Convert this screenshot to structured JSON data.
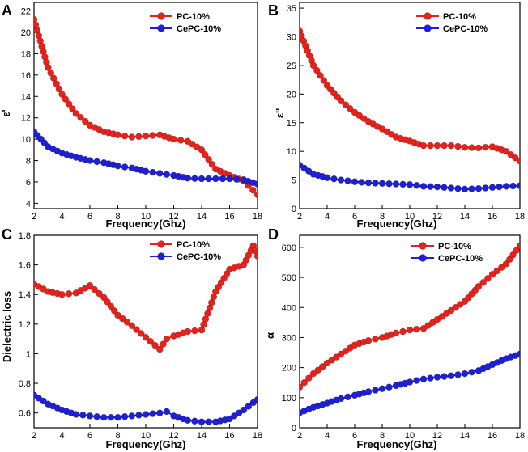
{
  "figure": {
    "series_colors": {
      "PC-10%": "#e8211b",
      "CePC-10%": "#1f20d6"
    }
  },
  "chart_data": [
    {
      "panel": "A",
      "type": "line",
      "xlabel": "Frequency(Ghz)",
      "ylabel": "ε'",
      "xlim": [
        2,
        18
      ],
      "ylim": [
        3.5,
        22.8
      ],
      "xticks": [
        2,
        4,
        6,
        8,
        10,
        12,
        14,
        16,
        18
      ],
      "yticks": [
        4,
        6,
        8,
        10,
        12,
        14,
        16,
        18,
        20,
        22
      ],
      "legend": [
        "PC-10%",
        "CePC-10%"
      ],
      "x": [
        2,
        3,
        4,
        5,
        6,
        7,
        8,
        9,
        10,
        11,
        12,
        13,
        14,
        15,
        16,
        17,
        18
      ],
      "series": [
        {
          "name": "PC-10%",
          "values": [
            21.2,
            16.7,
            14.2,
            12.4,
            11.3,
            10.7,
            10.4,
            10.2,
            10.3,
            10.4,
            10.0,
            9.8,
            9.0,
            7.2,
            6.6,
            6.1,
            4.8
          ]
        },
        {
          "name": "CePC-10%",
          "values": [
            10.7,
            9.3,
            8.7,
            8.3,
            8.0,
            7.8,
            7.5,
            7.3,
            7.0,
            6.8,
            6.6,
            6.35,
            6.3,
            6.3,
            6.3,
            6.2,
            5.8
          ]
        }
      ]
    },
    {
      "panel": "B",
      "type": "line",
      "xlabel": "Frequency(Ghz)",
      "ylabel": "ε''",
      "xlim": [
        2,
        18
      ],
      "ylim": [
        0,
        36
      ],
      "xticks": [
        2,
        4,
        6,
        8,
        10,
        12,
        14,
        16,
        18
      ],
      "yticks": [
        0,
        5,
        10,
        15,
        20,
        25,
        30,
        35
      ],
      "legend": [
        "PC-10%",
        "CePC-10%"
      ],
      "x": [
        2,
        3,
        4,
        5,
        6,
        7,
        8,
        9,
        10,
        11,
        12,
        13,
        14,
        15,
        16,
        17,
        18
      ],
      "series": [
        {
          "name": "PC-10%",
          "values": [
            31.0,
            25.0,
            21.5,
            18.8,
            16.8,
            15.2,
            13.9,
            12.5,
            11.8,
            11.0,
            11.0,
            11.0,
            10.7,
            10.6,
            10.8,
            10.0,
            8.3
          ]
        },
        {
          "name": "CePC-10%",
          "values": [
            7.6,
            6.0,
            5.4,
            5.0,
            4.7,
            4.5,
            4.4,
            4.3,
            4.2,
            3.9,
            3.8,
            3.6,
            3.4,
            3.5,
            3.7,
            3.9,
            4.0
          ]
        }
      ]
    },
    {
      "panel": "C",
      "type": "line",
      "xlabel": "Frequency(Ghz)",
      "ylabel": "Dielectric loss",
      "xlim": [
        2,
        18
      ],
      "ylim": [
        0.5,
        1.8
      ],
      "xticks": [
        2,
        4,
        6,
        8,
        10,
        12,
        14,
        16,
        18
      ],
      "yticks": [
        0.6,
        0.8,
        1.0,
        1.2,
        1.4,
        1.6,
        1.8
      ],
      "legend": [
        "PC-10%",
        "CePC-10%"
      ],
      "x": [
        2,
        3,
        4,
        5,
        6,
        7,
        8,
        9,
        10,
        11,
        11.5,
        12,
        13,
        14,
        15,
        16,
        17,
        17.7,
        18
      ],
      "series": [
        {
          "name": "PC-10%",
          "values": [
            1.47,
            1.42,
            1.4,
            1.41,
            1.46,
            1.38,
            1.26,
            1.19,
            1.11,
            1.03,
            1.1,
            1.12,
            1.15,
            1.16,
            1.42,
            1.57,
            1.6,
            1.73,
            1.66
          ]
        },
        {
          "name": "CePC-10%",
          "values": [
            0.72,
            0.66,
            0.62,
            0.59,
            0.58,
            0.57,
            0.57,
            0.58,
            0.59,
            0.6,
            0.61,
            0.58,
            0.55,
            0.54,
            0.54,
            0.56,
            0.62,
            0.67,
            0.69
          ]
        }
      ]
    },
    {
      "panel": "D",
      "type": "line",
      "xlabel": "Frequency(Ghz)",
      "ylabel": "α",
      "xlim": [
        2,
        18
      ],
      "ylim": [
        0,
        640
      ],
      "xticks": [
        2,
        4,
        6,
        8,
        10,
        12,
        14,
        16,
        18
      ],
      "yticks": [
        0,
        100,
        200,
        300,
        400,
        500,
        600
      ],
      "legend": [
        "PC-10%",
        "CePC-10%"
      ],
      "x": [
        2,
        3,
        4,
        5,
        6,
        7,
        8,
        9,
        10,
        11,
        12,
        13,
        14,
        15,
        16,
        17,
        18
      ],
      "series": [
        {
          "name": "PC-10%",
          "values": [
            135,
            180,
            215,
            245,
            275,
            290,
            300,
            315,
            325,
            330,
            360,
            390,
            420,
            470,
            510,
            545,
            605
          ]
        },
        {
          "name": "CePC-10%",
          "values": [
            50,
            68,
            82,
            97,
            108,
            120,
            130,
            140,
            152,
            162,
            168,
            173,
            180,
            190,
            210,
            230,
            245
          ]
        }
      ]
    }
  ]
}
